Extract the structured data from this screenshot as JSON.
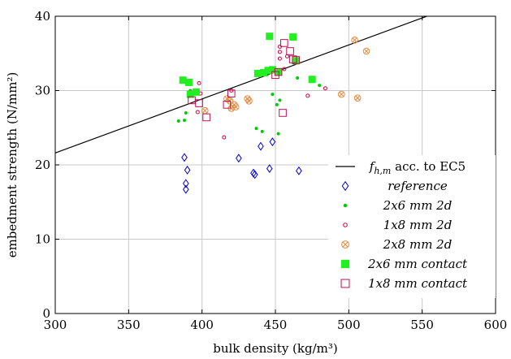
{
  "chart_data": {
    "type": "scatter",
    "xlabel": "bulk density (kg/m³)",
    "ylabel": "embedment strength (N/mm²)",
    "xlim": [
      300,
      600
    ],
    "ylim": [
      0,
      40
    ],
    "xticks": [
      "300",
      "350",
      "400",
      "450",
      "500",
      "550",
      "600"
    ],
    "yticks": [
      "0",
      "10",
      "20",
      "30",
      "40"
    ],
    "grid": true,
    "legend_position": "lower-right",
    "line": {
      "name": "f_{h,m} acc. to EC5",
      "label_main": "f",
      "label_sub": "h,m",
      "label_rest": " acc. to EC5",
      "x": [
        300,
        560
      ],
      "y": [
        21.6,
        40.5
      ],
      "color": "#000000"
    },
    "series": [
      {
        "name": "reference",
        "marker": "diamond",
        "color": "#0000cc",
        "points": [
          [
            388,
            21.0
          ],
          [
            389,
            17.5
          ],
          [
            389,
            16.7
          ],
          [
            390,
            19.3
          ],
          [
            425,
            20.9
          ],
          [
            435,
            18.9
          ],
          [
            436,
            18.7
          ],
          [
            440,
            22.5
          ],
          [
            446,
            19.5
          ],
          [
            448,
            23.1
          ],
          [
            466,
            19.2
          ]
        ]
      },
      {
        "name": "2x6 mm 2d",
        "marker": "dot",
        "color": "#00cc00",
        "points": [
          [
            384,
            25.9
          ],
          [
            388,
            26.0
          ],
          [
            389,
            27.0
          ],
          [
            392,
            30.0
          ],
          [
            437,
            24.9
          ],
          [
            441,
            24.5
          ],
          [
            448,
            29.5
          ],
          [
            451,
            28.1
          ],
          [
            452,
            24.2
          ],
          [
            453,
            28.7
          ],
          [
            465,
            31.7
          ],
          [
            480,
            30.7
          ]
        ]
      },
      {
        "name": "1x8 mm 2d",
        "marker": "circle",
        "color": "#cc0044",
        "points": [
          [
            397,
            27.1
          ],
          [
            398,
            31.0
          ],
          [
            399,
            29.6
          ],
          [
            415,
            23.7
          ],
          [
            420,
            30.0
          ],
          [
            453,
            34.3
          ],
          [
            453,
            35.2
          ],
          [
            453,
            35.9
          ],
          [
            456,
            32.9
          ],
          [
            458,
            34.6
          ],
          [
            472,
            29.3
          ],
          [
            484,
            30.3
          ]
        ]
      },
      {
        "name": "2x8 mm 2d",
        "marker": "circle-x",
        "color": "#e8893a",
        "points": [
          [
            402,
            27.3
          ],
          [
            417,
            28.9
          ],
          [
            419,
            28.6
          ],
          [
            420,
            27.6
          ],
          [
            422,
            28.1
          ],
          [
            423,
            27.8
          ],
          [
            431,
            28.9
          ],
          [
            432,
            28.6
          ],
          [
            495,
            29.5
          ],
          [
            504,
            36.8
          ],
          [
            506,
            29.0
          ],
          [
            512,
            35.3
          ]
        ]
      },
      {
        "name": "2x6 mm contact",
        "marker": "square",
        "color": "#22ee22",
        "points": [
          [
            387,
            31.4
          ],
          [
            391,
            31.1
          ],
          [
            392,
            29.5
          ],
          [
            396,
            29.8
          ],
          [
            438,
            32.3
          ],
          [
            442,
            32.4
          ],
          [
            445,
            32.7
          ],
          [
            446,
            37.3
          ],
          [
            448,
            32.8
          ],
          [
            452,
            32.5
          ],
          [
            462,
            37.2
          ],
          [
            464,
            34.0
          ],
          [
            475,
            31.5
          ]
        ]
      },
      {
        "name": "1x8 mm contact",
        "marker": "square-open",
        "color": "#bb1155",
        "points": [
          [
            393,
            28.7
          ],
          [
            398,
            28.3
          ],
          [
            403,
            26.4
          ],
          [
            417,
            28.1
          ],
          [
            420,
            29.6
          ],
          [
            450,
            32.1
          ],
          [
            452,
            32.5
          ],
          [
            455,
            27.0
          ],
          [
            456,
            36.4
          ],
          [
            460,
            35.3
          ],
          [
            462,
            34.2
          ],
          [
            464,
            34.1
          ]
        ]
      }
    ]
  }
}
